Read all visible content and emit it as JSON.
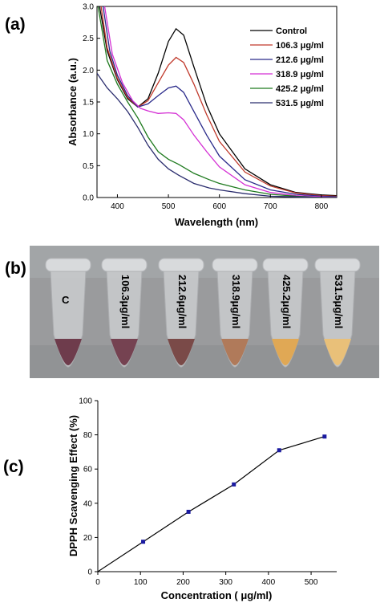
{
  "panels": {
    "a": "(a)",
    "b": "(b)",
    "c": "(c)"
  },
  "tube_photo": {
    "labels": [
      "C",
      "106.3μg/ml",
      "212.6μg/ml",
      "318.9μg/ml",
      "425.2μg/ml",
      "531.5μg/ml"
    ],
    "liquid_colors": [
      "#6e3c4c",
      "#754251",
      "#7a4a48",
      "#b07a5a",
      "#e0a855",
      "#e9c079"
    ]
  },
  "chart_data": [
    {
      "type": "line",
      "xlabel": "Wavelength (nm)",
      "ylabel": "Absorbance (a.u.)",
      "xlim": [
        360,
        830
      ],
      "ylim": [
        0,
        3.0
      ],
      "xticks": [
        400,
        500,
        600,
        700,
        800
      ],
      "yticks": [
        0.0,
        0.5,
        1.0,
        1.5,
        2.0,
        2.5,
        3.0
      ],
      "legend_position": "top-right",
      "series": [
        {
          "name": "Control",
          "color": "#000000",
          "points": [
            [
              365,
              3.0
            ],
            [
              380,
              2.3
            ],
            [
              400,
              1.85
            ],
            [
              420,
              1.55
            ],
            [
              440,
              1.42
            ],
            [
              460,
              1.55
            ],
            [
              480,
              1.95
            ],
            [
              500,
              2.45
            ],
            [
              515,
              2.65
            ],
            [
              530,
              2.55
            ],
            [
              550,
              2.05
            ],
            [
              575,
              1.45
            ],
            [
              600,
              1.0
            ],
            [
              650,
              0.45
            ],
            [
              700,
              0.2
            ],
            [
              750,
              0.08
            ],
            [
              800,
              0.04
            ],
            [
              830,
              0.03
            ]
          ]
        },
        {
          "name": "106.3 μg/ml",
          "color": "#c0392b",
          "points": [
            [
              368,
              3.0
            ],
            [
              380,
              2.35
            ],
            [
              400,
              1.87
            ],
            [
              420,
              1.57
            ],
            [
              440,
              1.42
            ],
            [
              460,
              1.52
            ],
            [
              480,
              1.8
            ],
            [
              500,
              2.08
            ],
            [
              515,
              2.2
            ],
            [
              530,
              2.12
            ],
            [
              550,
              1.78
            ],
            [
              575,
              1.3
            ],
            [
              600,
              0.88
            ],
            [
              650,
              0.4
            ],
            [
              700,
              0.18
            ],
            [
              750,
              0.07
            ],
            [
              800,
              0.03
            ],
            [
              830,
              0.02
            ]
          ]
        },
        {
          "name": "212.6 μg/ml",
          "color": "#2a2a8a",
          "points": [
            [
              372,
              3.0
            ],
            [
              385,
              2.3
            ],
            [
              400,
              1.92
            ],
            [
              420,
              1.6
            ],
            [
              440,
              1.42
            ],
            [
              460,
              1.47
            ],
            [
              480,
              1.6
            ],
            [
              500,
              1.72
            ],
            [
              515,
              1.75
            ],
            [
              530,
              1.65
            ],
            [
              550,
              1.35
            ],
            [
              575,
              0.98
            ],
            [
              600,
              0.65
            ],
            [
              650,
              0.28
            ],
            [
              700,
              0.12
            ],
            [
              750,
              0.05
            ],
            [
              800,
              0.02
            ],
            [
              830,
              0.01
            ]
          ]
        },
        {
          "name": "318.9 μg/ml",
          "color": "#d42fd4",
          "points": [
            [
              375,
              3.0
            ],
            [
              390,
              2.25
            ],
            [
              410,
              1.8
            ],
            [
              430,
              1.52
            ],
            [
              445,
              1.4
            ],
            [
              460,
              1.36
            ],
            [
              480,
              1.32
            ],
            [
              500,
              1.33
            ],
            [
              515,
              1.32
            ],
            [
              530,
              1.22
            ],
            [
              550,
              0.98
            ],
            [
              575,
              0.72
            ],
            [
              600,
              0.48
            ],
            [
              650,
              0.2
            ],
            [
              700,
              0.08
            ],
            [
              750,
              0.03
            ],
            [
              800,
              0.01
            ],
            [
              830,
              0.0
            ]
          ]
        },
        {
          "name": "425.2 μg/ml",
          "color": "#1e7a1e",
          "points": [
            [
              362,
              3.0
            ],
            [
              380,
              2.15
            ],
            [
              400,
              1.78
            ],
            [
              420,
              1.5
            ],
            [
              440,
              1.25
            ],
            [
              460,
              0.95
            ],
            [
              480,
              0.72
            ],
            [
              500,
              0.6
            ],
            [
              520,
              0.52
            ],
            [
              550,
              0.38
            ],
            [
              580,
              0.28
            ],
            [
              600,
              0.22
            ],
            [
              650,
              0.12
            ],
            [
              700,
              0.05
            ],
            [
              750,
              0.02
            ],
            [
              800,
              0.0
            ],
            [
              830,
              0.0
            ]
          ]
        },
        {
          "name": "531.5 μg/ml",
          "color": "#2b2d6e",
          "points": [
            [
              360,
              1.95
            ],
            [
              380,
              1.72
            ],
            [
              400,
              1.55
            ],
            [
              420,
              1.35
            ],
            [
              440,
              1.1
            ],
            [
              460,
              0.82
            ],
            [
              480,
              0.6
            ],
            [
              500,
              0.45
            ],
            [
              520,
              0.35
            ],
            [
              550,
              0.22
            ],
            [
              580,
              0.15
            ],
            [
              600,
              0.12
            ],
            [
              650,
              0.06
            ],
            [
              700,
              0.02
            ],
            [
              750,
              0.01
            ],
            [
              800,
              0.0
            ],
            [
              830,
              0.0
            ]
          ]
        }
      ]
    },
    {
      "type": "line",
      "xlabel": "Concentration ( μg/ml)",
      "ylabel": "DPPH Scavenging Effect (%)",
      "xlim": [
        0,
        560
      ],
      "ylim": [
        0,
        100
      ],
      "xticks": [
        0,
        100,
        200,
        300,
        400,
        500
      ],
      "yticks": [
        0,
        20,
        40,
        60,
        80,
        100
      ],
      "series": [
        {
          "color": "#1a1aa0",
          "x": [
            0,
            106.3,
            212.6,
            318.9,
            425.2,
            531.5
          ],
          "y": [
            0,
            17.5,
            35,
            51,
            71,
            79
          ]
        }
      ]
    }
  ]
}
